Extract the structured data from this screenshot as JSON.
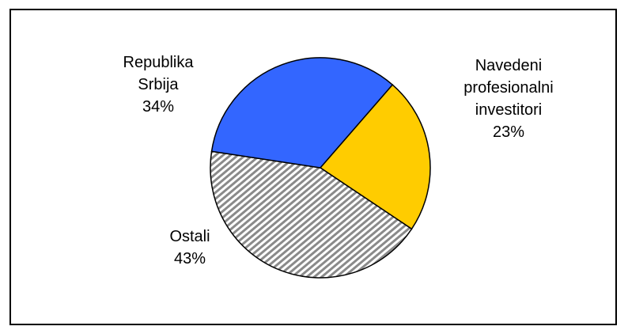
{
  "chart_data": {
    "type": "pie",
    "title": "",
    "slices": [
      {
        "label_lines": [
          "Navedeni",
          "profesionalni",
          "investitori"
        ],
        "percent_label": "23%",
        "value": 23,
        "color": "#ffcc00",
        "fill": "solid"
      },
      {
        "label_lines": [
          "Ostali"
        ],
        "percent_label": "43%",
        "value": 43,
        "color": "#999999",
        "fill": "diagonal-hatch"
      },
      {
        "label_lines": [
          "Republika",
          "Srbija"
        ],
        "percent_label": "34%",
        "value": 34,
        "color": "#3366ff",
        "fill": "solid"
      }
    ],
    "legend": "none",
    "outline_color": "#000000"
  }
}
